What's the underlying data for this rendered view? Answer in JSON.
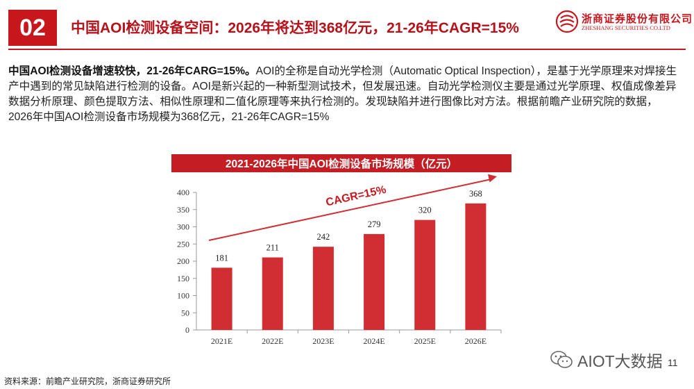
{
  "header": {
    "section_number": "02",
    "title": "中国AOI检测设备空间：2026年将达到368亿元，21-26年CAGR=15%",
    "brand_red": "#c8161d"
  },
  "logo": {
    "name_cn": "浙商证券股份有限公司",
    "name_en": "ZHESHANG SECURITIES CO.LTD"
  },
  "intro": {
    "lead": "中国AOI检测设备增速较快，21-26年CARG=15%。",
    "body": "AOI的全称是自动光学检测（Automatic Optical Inspection），是基于光学原理来对焊接生产中遇到的常见缺陷进行检测的设备。AOI是新兴起的一种新型测试技术，但发展迅速。自动光学检测仪主要是通过光学原理、权值成像差异数据分析原理、颜色提取方法、相似性原理和二值化原理等来执行检测的。发现缺陷并进行图像比对方法。根据前瞻产业研究院的数据，2026年中国AOI检测设备市场规模为368亿元，21-26年CAGR=15%"
  },
  "chart_data": {
    "type": "bar",
    "title": "2021-2026年中国AOI检测设备市场规模（亿元）",
    "categories": [
      "2021E",
      "2022E",
      "2023E",
      "2024E",
      "2025E",
      "2026E"
    ],
    "values": [
      181,
      211,
      242,
      279,
      320,
      368
    ],
    "ylim": [
      0,
      400
    ],
    "yticks": [
      0,
      50,
      100,
      150,
      200,
      250,
      300,
      350,
      400
    ],
    "xlabel": "",
    "ylabel": "",
    "grid": false,
    "bar_color": "#d12e33",
    "annotation": "CAGR=15%"
  },
  "footer": {
    "source": "资料来源：前瞻产业研究院，浙商证券研究所",
    "watermark": "AIOT大数据",
    "page_number": "11"
  }
}
